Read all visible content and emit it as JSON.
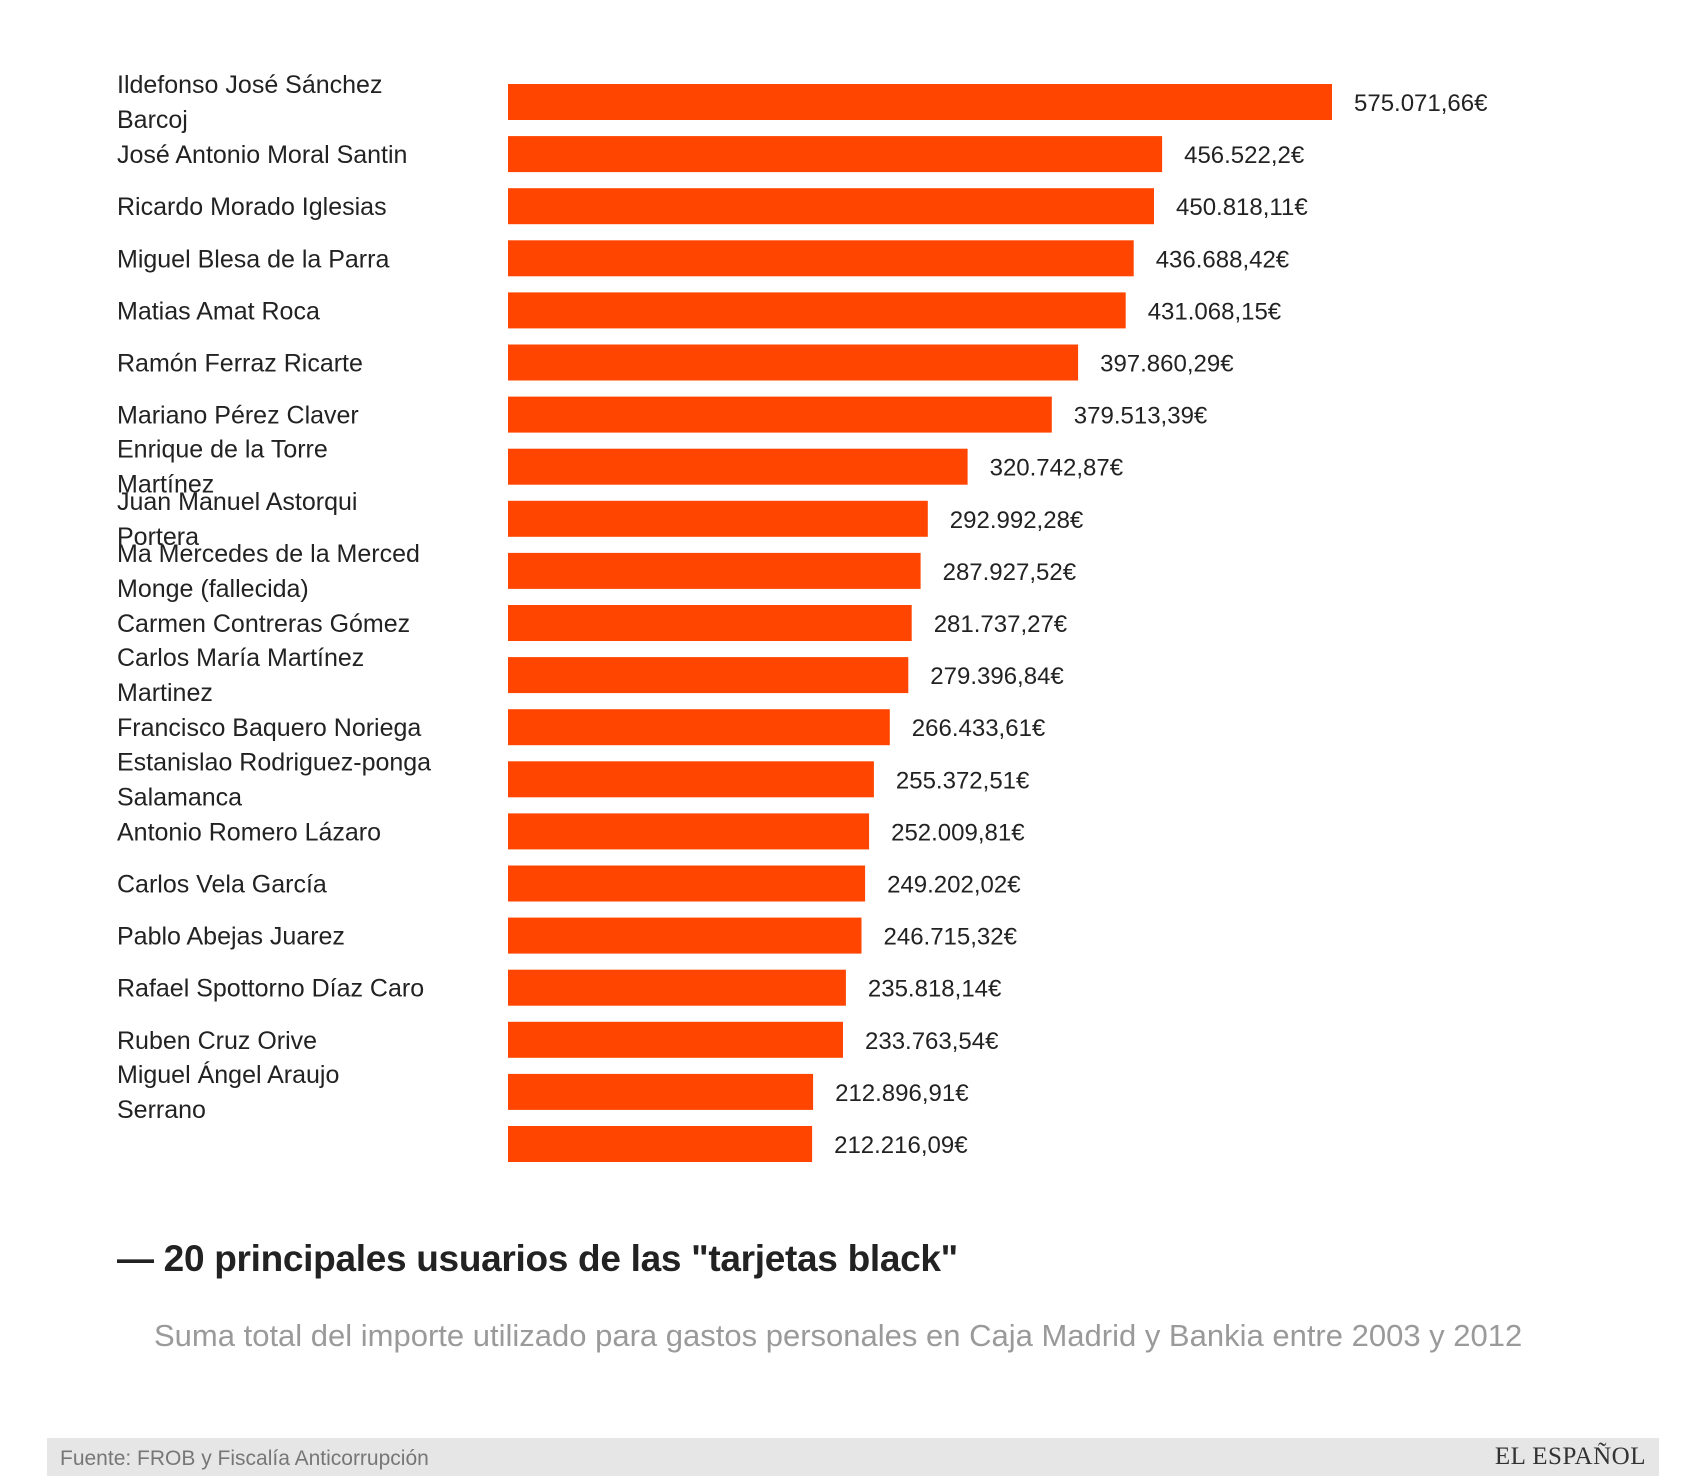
{
  "chart_data": {
    "type": "bar",
    "orientation": "horizontal",
    "title": "— 20 principales usuarios de las \"tarjetas black\"",
    "subtitle": "Suma total del importe utilizado para gastos personales en Caja Madrid y Bankia entre 2003 y 2012",
    "unit": "€",
    "bar_color": "#ff4500",
    "categories": [
      "Ildefonso José Sánchez Barcoj",
      "José Antonio Moral Santin",
      "Ricardo Morado Iglesias",
      "Miguel Blesa de la Parra",
      "Matias Amat Roca",
      "Ramón Ferraz Ricarte",
      "Mariano Pérez Claver",
      "Enrique de la Torre Martínez",
      "Juan Manuel Astorqui Portera",
      "Ma Mercedes de la Merced Monge (fallecida)",
      "Carmen Contreras Gómez",
      "Carlos María Martínez Martinez",
      "Francisco Baquero Noriega",
      "Estanislao Rodriguez-ponga Salamanca",
      "Antonio Romero Lázaro",
      "Carlos Vela García",
      "Pablo Abejas Juarez",
      "Rafael Spottorno Díaz Caro",
      "Ruben Cruz Orive",
      "Miguel Ángel Araujo Serrano",
      ""
    ],
    "values": [
      575071.66,
      456522.2,
      450818.11,
      436688.42,
      431068.15,
      397860.29,
      379513.39,
      320742.87,
      292992.28,
      287927.52,
      281737.27,
      279396.84,
      266433.61,
      255372.51,
      252009.81,
      249202.02,
      246715.32,
      235818.14,
      233763.54,
      212896.91,
      212216.09
    ],
    "value_labels": [
      "575.071,66€",
      "456.522,2€",
      "450.818,11€",
      "436.688,42€",
      "431.068,15€",
      "397.860,29€",
      "379.513,39€",
      "320.742,87€",
      "292.992,28€",
      "287.927,52€",
      "281.737,27€",
      "279.396,84€",
      "266.433,61€",
      "255.372,51€",
      "252.009,81€",
      "249.202,02€",
      "246.715,32€",
      "235.818,14€",
      "233.763,54€",
      "212.896,91€",
      "212.216,09€"
    ],
    "xlim": [
      0,
      575071.66
    ],
    "grid": false,
    "legend": "none"
  },
  "footer": {
    "source": "Fuente: FROB y Fiscalía Anticorrupción",
    "logo": "EL ESPAÑOL"
  }
}
